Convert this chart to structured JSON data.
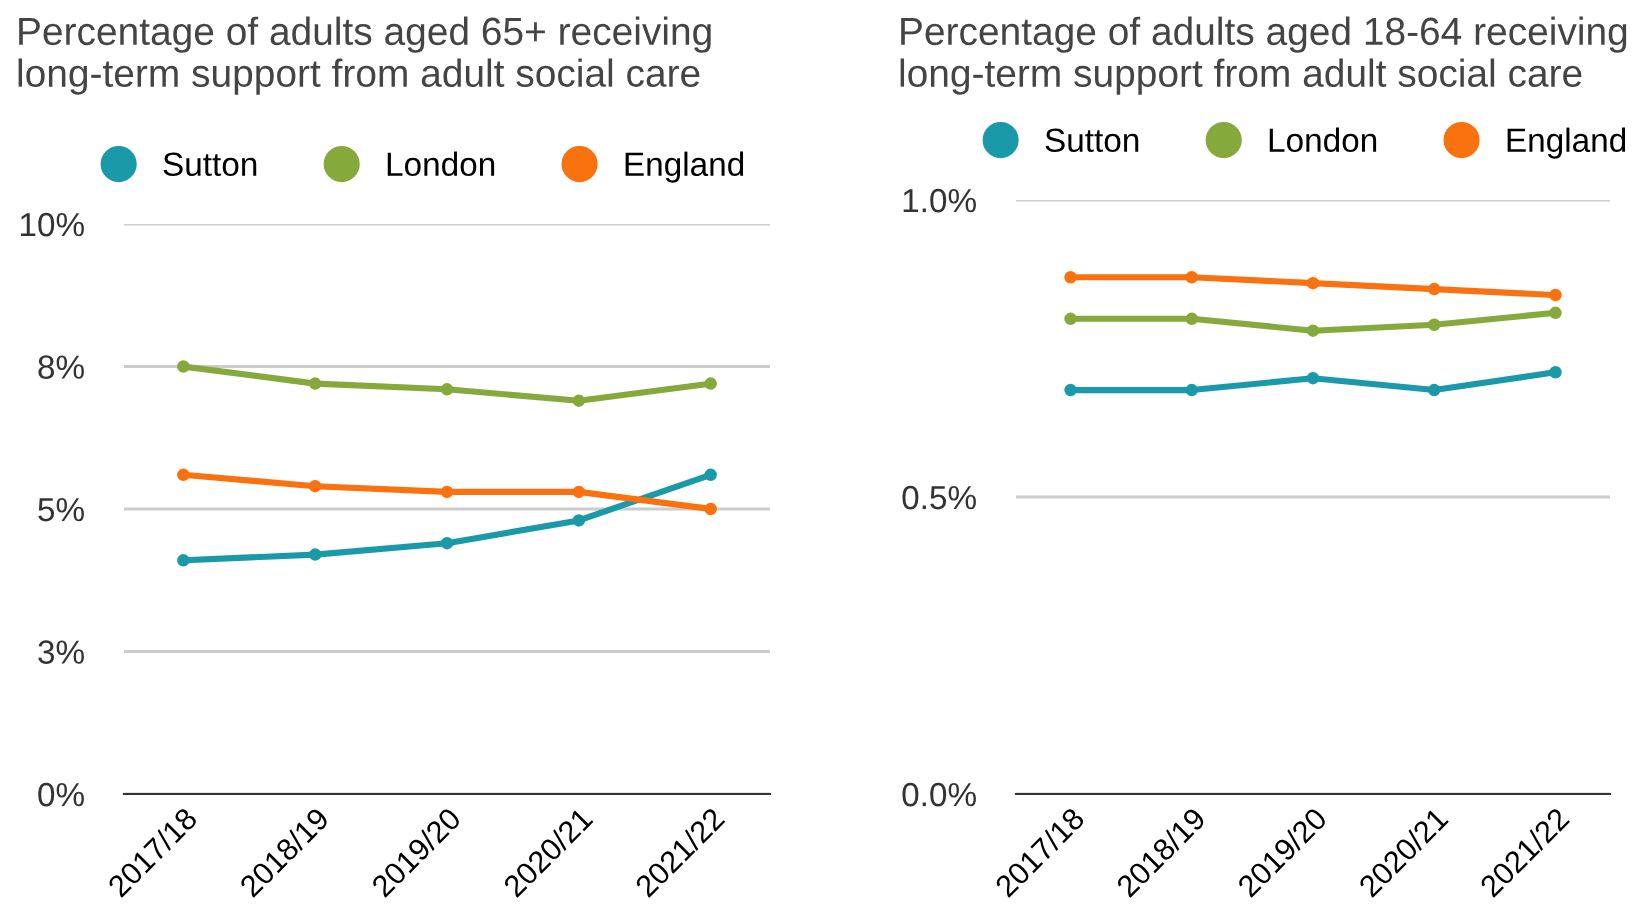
{
  "chart_data": [
    {
      "type": "line",
      "title": "Percentage of adults aged 65+ receiving\nlong-term support from adult social care",
      "categories": [
        "2017/18",
        "2018/19",
        "2019/20",
        "2020/21",
        "2021/22"
      ],
      "series": [
        {
          "name": "Sutton",
          "color": "#1a9aa8",
          "values": [
            4.1,
            4.2,
            4.4,
            4.8,
            5.6
          ]
        },
        {
          "name": "London",
          "color": "#86a93c",
          "values": [
            7.5,
            7.2,
            7.1,
            6.9,
            7.2
          ]
        },
        {
          "name": "England",
          "color": "#f9720f",
          "values": [
            5.6,
            5.4,
            5.3,
            5.3,
            5.0
          ]
        }
      ],
      "ylim": [
        0,
        10
      ],
      "yticks": [
        {
          "value": 0,
          "label": "0%"
        },
        {
          "value": 2.5,
          "label": "3%"
        },
        {
          "value": 5,
          "label": "5%"
        },
        {
          "value": 7.5,
          "label": "8%"
        },
        {
          "value": 10,
          "label": "10%"
        }
      ],
      "grid": "y",
      "legend": "top left",
      "marker": "circle",
      "line_style": "solid"
    },
    {
      "type": "line",
      "title": "Percentage of adults aged 18-64 receiving\nlong-term support from adult social care",
      "categories": [
        "2017/18",
        "2018/19",
        "2019/20",
        "2020/21",
        "2021/22"
      ],
      "series": [
        {
          "name": "Sutton",
          "color": "#1a9aa8",
          "values": [
            0.68,
            0.68,
            0.7,
            0.68,
            0.71
          ]
        },
        {
          "name": "London",
          "color": "#86a93c",
          "values": [
            0.8,
            0.8,
            0.78,
            0.79,
            0.81
          ]
        },
        {
          "name": "England",
          "color": "#f9720f",
          "values": [
            0.87,
            0.87,
            0.86,
            0.85,
            0.84
          ]
        }
      ],
      "ylim": [
        0,
        1
      ],
      "yticks": [
        {
          "value": 0,
          "label": "0.0%"
        },
        {
          "value": 0.5,
          "label": "0.5%"
        },
        {
          "value": 1,
          "label": "1.0%"
        }
      ],
      "grid": "y",
      "legend": "top left",
      "marker": "circle",
      "line_style": "solid"
    }
  ]
}
